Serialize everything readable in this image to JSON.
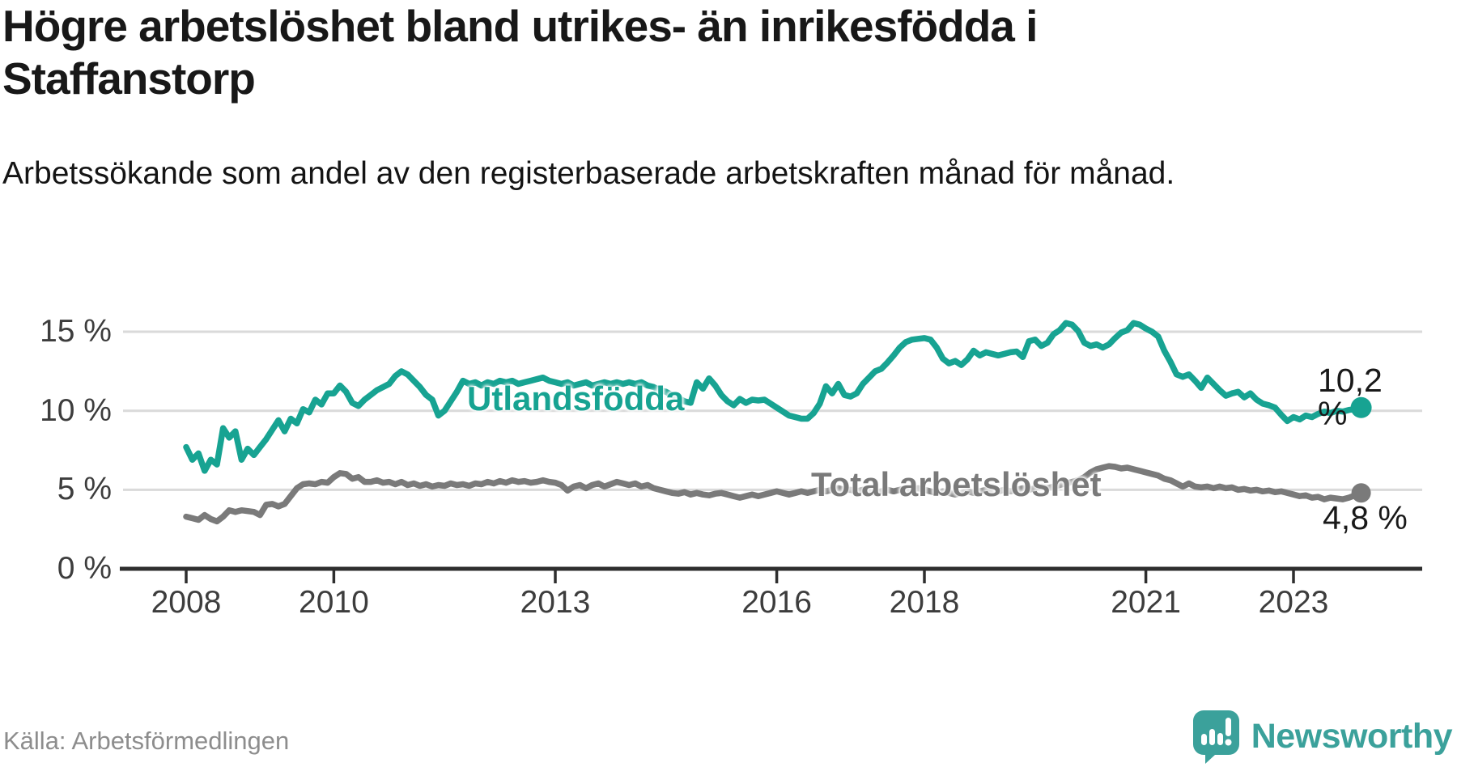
{
  "title": "Högre arbetslöshet bland utrikes- än inrikesfödda i Staffanstorp",
  "subtitle": "Arbetssökande som andel av den registerbaserade arbetskraften månad för månad.",
  "source": "Källa: Arbetsförmedlingen",
  "branding": {
    "name": "Newsworthy",
    "logo_icon": "speech-bubble-bar-chart-icon",
    "color": "#3ba19b"
  },
  "colors": {
    "teal_line": "#17a392",
    "gray_line": "#7a7a7a",
    "grid": "#dadada",
    "axis": "#2e2e2e",
    "value_label": "#191919",
    "tick_text": "#3d3d3d"
  },
  "chart_data": {
    "type": "line",
    "title": "Högre arbetslöshet bland utrikes- än inrikesfödda i Staffanstorp",
    "subtitle": "Arbetssökande som andel av den registerbaserade arbetskraften månad för månad.",
    "frequency": "monthly",
    "x_start": "2008-01",
    "x_end": "2023-12",
    "ylim": [
      0,
      16.5
    ],
    "grid": "horizontal",
    "legend_position": "inline-on-line",
    "yticks": [
      {
        "value": 0,
        "label": "0 %"
      },
      {
        "value": 5,
        "label": "5 %"
      },
      {
        "value": 10,
        "label": "10 %"
      },
      {
        "value": 15,
        "label": "15 %"
      }
    ],
    "xticks": [
      {
        "year": 2008,
        "label": "2008"
      },
      {
        "year": 2010,
        "label": "2010"
      },
      {
        "year": 2013,
        "label": "2013"
      },
      {
        "year": 2016,
        "label": "2016"
      },
      {
        "year": 2018,
        "label": "2018"
      },
      {
        "year": 2021,
        "label": "2021"
      },
      {
        "year": 2023,
        "label": "2023"
      }
    ],
    "series": [
      {
        "name": "Utlandsfödda",
        "color": "#17a392",
        "end_label": "10,2 %",
        "end_value": 10.2,
        "values": [
          7.7,
          6.9,
          7.3,
          6.2,
          6.9,
          6.6,
          8.9,
          8.3,
          8.7,
          6.9,
          7.6,
          7.2,
          7.7,
          8.2,
          8.8,
          9.4,
          8.7,
          9.5,
          9.2,
          10.1,
          9.9,
          10.7,
          10.4,
          11.1,
          11.1,
          11.6,
          11.2,
          10.5,
          10.3,
          10.7,
          11.0,
          11.3,
          11.5,
          11.7,
          12.2,
          12.5,
          12.3,
          11.9,
          11.5,
          11.0,
          10.7,
          9.7,
          10.0,
          10.6,
          11.2,
          11.9,
          11.7,
          11.8,
          11.6,
          11.8,
          11.7,
          11.9,
          11.8,
          11.9,
          11.7,
          11.8,
          11.9,
          12.0,
          12.1,
          11.9,
          11.8,
          11.7,
          11.8,
          11.6,
          11.7,
          11.8,
          11.6,
          11.7,
          11.8,
          11.7,
          11.8,
          11.7,
          11.8,
          11.7,
          11.8,
          11.6,
          11.5,
          11.3,
          11.2,
          11.0,
          10.8,
          10.6,
          10.5,
          11.8,
          11.4,
          12.05,
          11.6,
          11.0,
          10.6,
          10.35,
          10.75,
          10.5,
          10.7,
          10.65,
          10.7,
          10.45,
          10.2,
          9.95,
          9.7,
          9.6,
          9.5,
          9.5,
          9.85,
          10.45,
          11.55,
          11.1,
          11.7,
          11.0,
          10.9,
          11.1,
          11.7,
          12.1,
          12.5,
          12.65,
          13.05,
          13.5,
          14.0,
          14.35,
          14.5,
          14.55,
          14.6,
          14.5,
          14.0,
          13.3,
          13.0,
          13.15,
          12.9,
          13.25,
          13.8,
          13.5,
          13.7,
          13.6,
          13.5,
          13.6,
          13.7,
          13.75,
          13.4,
          14.4,
          14.5,
          14.1,
          14.3,
          14.85,
          15.1,
          15.55,
          15.45,
          15.05,
          14.3,
          14.1,
          14.2,
          14.0,
          14.2,
          14.6,
          14.95,
          15.1,
          15.55,
          15.45,
          15.2,
          15.0,
          14.7,
          13.8,
          13.1,
          12.3,
          12.15,
          12.3,
          11.9,
          11.45,
          12.1,
          11.7,
          11.3,
          10.95,
          11.1,
          11.2,
          10.85,
          11.1,
          10.7,
          10.45,
          10.35,
          10.2,
          9.75,
          9.35,
          9.6,
          9.45,
          9.7,
          9.6,
          9.8,
          9.95,
          9.85,
          10.0,
          9.95,
          10.05,
          10.1,
          10.2
        ]
      },
      {
        "name": "Total arbetslöshet",
        "color": "#7a7a7a",
        "end_label": "4,8 %",
        "end_value": 4.8,
        "values": [
          3.3,
          3.2,
          3.1,
          3.4,
          3.15,
          3.0,
          3.3,
          3.7,
          3.6,
          3.7,
          3.65,
          3.6,
          3.4,
          4.05,
          4.1,
          3.95,
          4.1,
          4.6,
          5.1,
          5.35,
          5.4,
          5.35,
          5.5,
          5.45,
          5.8,
          6.05,
          6.0,
          5.7,
          5.8,
          5.5,
          5.5,
          5.6,
          5.45,
          5.5,
          5.35,
          5.5,
          5.3,
          5.4,
          5.25,
          5.35,
          5.2,
          5.3,
          5.25,
          5.4,
          5.3,
          5.35,
          5.25,
          5.4,
          5.35,
          5.5,
          5.4,
          5.55,
          5.45,
          5.6,
          5.5,
          5.55,
          5.45,
          5.5,
          5.6,
          5.5,
          5.45,
          5.3,
          4.95,
          5.2,
          5.3,
          5.1,
          5.3,
          5.4,
          5.2,
          5.35,
          5.5,
          5.4,
          5.3,
          5.4,
          5.2,
          5.3,
          5.1,
          5.0,
          4.9,
          4.8,
          4.75,
          4.85,
          4.7,
          4.8,
          4.7,
          4.65,
          4.75,
          4.8,
          4.7,
          4.6,
          4.5,
          4.6,
          4.7,
          4.6,
          4.7,
          4.8,
          4.9,
          4.8,
          4.7,
          4.8,
          4.9,
          4.8,
          4.9,
          5.0,
          4.9,
          5.0,
          5.1,
          5.0,
          5.0,
          4.9,
          5.0,
          4.9,
          4.8,
          4.9,
          5.0,
          4.9,
          5.0,
          5.1,
          5.0,
          5.1,
          5.0,
          4.9,
          4.8,
          4.9,
          4.8,
          4.7,
          4.8,
          4.9,
          4.8,
          4.9,
          5.0,
          4.9,
          4.9,
          5.0,
          4.9,
          5.0,
          5.1,
          5.0,
          5.1,
          5.2,
          5.1,
          5.2,
          5.3,
          5.4,
          5.5,
          5.6,
          5.8,
          6.1,
          6.3,
          6.4,
          6.5,
          6.45,
          6.35,
          6.4,
          6.3,
          6.2,
          6.1,
          6.0,
          5.9,
          5.7,
          5.6,
          5.4,
          5.2,
          5.4,
          5.2,
          5.15,
          5.2,
          5.1,
          5.2,
          5.1,
          5.15,
          5.0,
          5.05,
          4.95,
          5.0,
          4.9,
          4.95,
          4.85,
          4.9,
          4.8,
          4.7,
          4.6,
          4.65,
          4.5,
          4.55,
          4.4,
          4.5,
          4.45,
          4.4,
          4.5,
          4.65,
          4.8
        ]
      }
    ]
  }
}
